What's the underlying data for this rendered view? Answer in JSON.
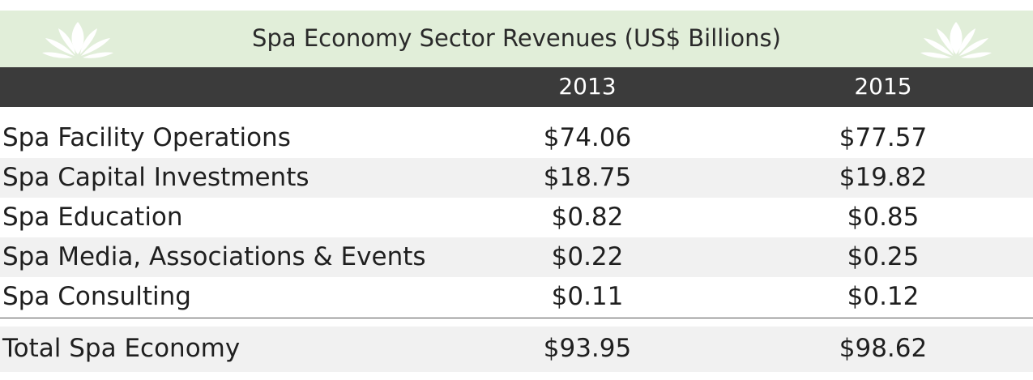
{
  "title": "Spa Economy Sector Revenues (US$ Billions)",
  "icons": {
    "left": "lotus-icon",
    "right": "lotus-icon"
  },
  "colors": {
    "title_band": "#e1eed9",
    "header_band": "#3b3b3b",
    "shaded_row": "#f1f1f1"
  },
  "chart_data": {
    "type": "table",
    "title": "Spa Economy Sector Revenues (US$ Billions)",
    "columns": [
      "2013",
      "2015"
    ],
    "rows": [
      {
        "label": "Spa Facility Operations",
        "values": [
          "$74.06",
          "$77.57"
        ]
      },
      {
        "label": "Spa Capital Investments",
        "values": [
          "$18.75",
          "$19.82"
        ]
      },
      {
        "label": "Spa Education",
        "values": [
          "$0.82",
          "$0.85"
        ]
      },
      {
        "label": "Spa Media, Associations & Events",
        "values": [
          "$0.22",
          "$0.25"
        ]
      },
      {
        "label": "Spa Consulting",
        "values": [
          "$0.11",
          "$0.12"
        ]
      }
    ],
    "total": {
      "label": "Total Spa Economy",
      "values": [
        "$93.95",
        "$98.62"
      ]
    }
  }
}
